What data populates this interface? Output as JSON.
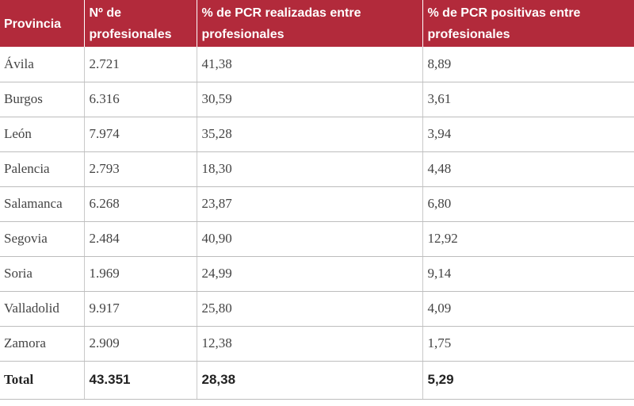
{
  "table": {
    "headers": [
      "Provincia",
      "Nº de profesionales",
      "% de PCR realizadas entre profesionales",
      "% de PCR positivas entre profesionales"
    ],
    "rows": [
      [
        "Ávila",
        "2.721",
        "41,38",
        "8,89"
      ],
      [
        "Burgos",
        "6.316",
        "30,59",
        "3,61"
      ],
      [
        "León",
        "7.974",
        "35,28",
        "3,94"
      ],
      [
        "Palencia",
        "2.793",
        "18,30",
        "4,48"
      ],
      [
        "Salamanca",
        "6.268",
        "23,87",
        "6,80"
      ],
      [
        "Segovia",
        "2.484",
        "40,90",
        "12,92"
      ],
      [
        "Soria",
        "1.969",
        "24,99",
        "9,14"
      ],
      [
        "Valladolid",
        "9.917",
        "25,80",
        "4,09"
      ],
      [
        "Zamora",
        "2.909",
        "12,38",
        "1,75"
      ]
    ],
    "total": [
      "Total",
      "43.351",
      "28,38",
      "5,29"
    ]
  },
  "colors": {
    "header_bg": "#b22a3b",
    "header_text": "#ffffff",
    "cell_text": "#444444"
  }
}
